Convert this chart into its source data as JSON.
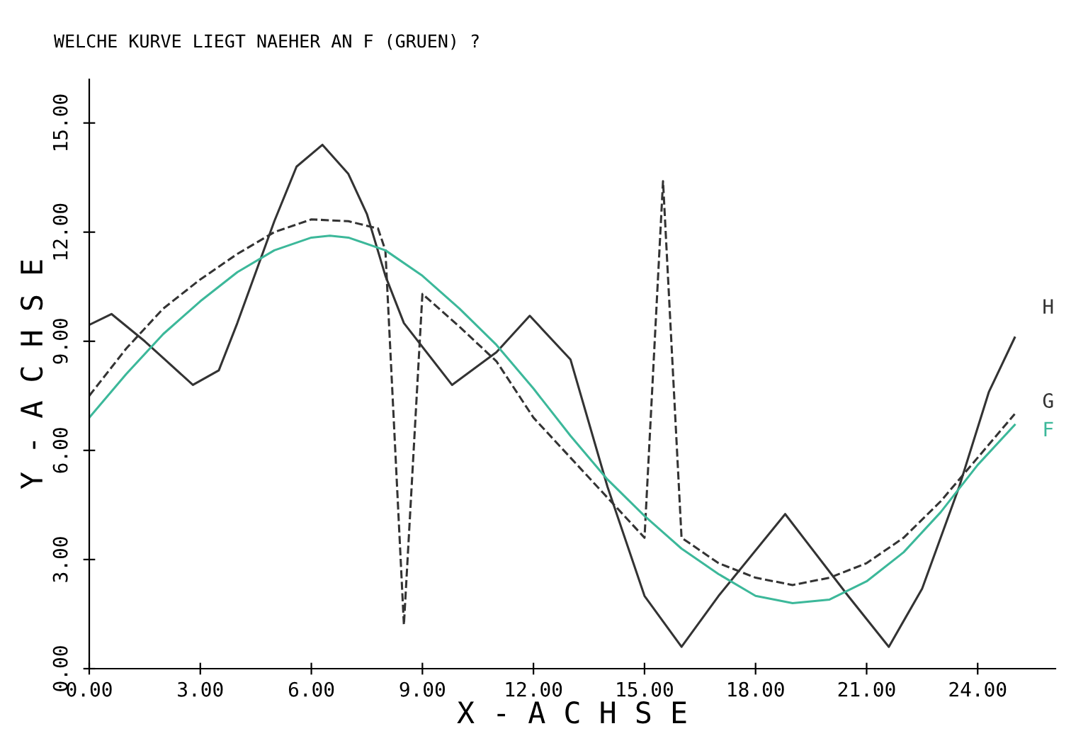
{
  "chart_data": {
    "type": "line",
    "title": "WELCHE KURVE LIEGT NAEHER AN F (GRUEN) ?",
    "xlabel": "X - A C H S E",
    "ylabel": "Y - A C H S E",
    "xlim": [
      0,
      26.1
    ],
    "ylim": [
      0,
      16.2
    ],
    "xticks": [
      {
        "value": 0,
        "label": "0.00"
      },
      {
        "value": 3,
        "label": "3.00"
      },
      {
        "value": 6,
        "label": "6.00"
      },
      {
        "value": 9,
        "label": "9.00"
      },
      {
        "value": 12,
        "label": "12.00"
      },
      {
        "value": 15,
        "label": "15.00"
      },
      {
        "value": 18,
        "label": "18.00"
      },
      {
        "value": 21,
        "label": "21.00"
      },
      {
        "value": 24,
        "label": "24.00"
      }
    ],
    "yticks": [
      {
        "value": 0,
        "label": "0.00"
      },
      {
        "value": 3,
        "label": "3.00"
      },
      {
        "value": 6,
        "label": "6.00"
      },
      {
        "value": 9,
        "label": "9.00"
      },
      {
        "value": 12,
        "label": "12.00"
      },
      {
        "value": 15,
        "label": "15.00"
      }
    ],
    "grid": false,
    "legend": false,
    "marker": "none",
    "series": [
      {
        "name": "H",
        "color": "#333333",
        "line_style": "solid",
        "x": [
          0,
          0.6,
          1.5,
          2.8,
          3.5,
          4,
          5,
          5.6,
          6.3,
          7,
          7.5,
          8,
          8.5,
          9.8,
          11,
          11.9,
          13,
          14,
          15,
          16,
          17,
          18.8,
          20.5,
          21.6,
          22.5,
          23.5,
          24.3,
          25
        ],
        "values": [
          9.45,
          9.75,
          9.0,
          7.8,
          8.2,
          9.5,
          12.3,
          13.8,
          14.4,
          13.6,
          12.5,
          10.8,
          9.5,
          7.8,
          8.7,
          9.7,
          8.5,
          5.0,
          2.0,
          0.6,
          2.0,
          4.25,
          2.0,
          0.6,
          2.2,
          5.0,
          7.6,
          9.1
        ]
      },
      {
        "name": "G",
        "color": "#333333",
        "line_style": "dashed",
        "x": [
          0,
          1,
          2,
          3,
          4,
          5,
          6,
          7,
          7.8,
          8.0,
          8.5,
          9.0,
          10,
          11,
          12,
          13,
          14,
          15,
          15.5,
          16.0,
          17,
          18,
          19,
          20,
          21,
          22,
          23,
          24,
          25
        ],
        "values": [
          7.5,
          8.8,
          9.9,
          10.7,
          11.4,
          12.0,
          12.35,
          12.3,
          12.1,
          11.5,
          1.2,
          10.3,
          9.4,
          8.45,
          6.9,
          5.8,
          4.7,
          3.6,
          13.4,
          3.6,
          2.9,
          2.5,
          2.3,
          2.5,
          2.9,
          3.6,
          4.6,
          5.8,
          7.0
        ]
      },
      {
        "name": "F",
        "color": "#3cb89a",
        "line_style": "solid",
        "x": [
          0,
          1,
          2,
          3,
          4,
          5,
          6,
          6.5,
          7,
          8,
          9,
          10,
          11,
          12,
          13,
          14,
          15,
          16,
          17,
          18,
          19,
          20,
          21,
          22,
          23,
          24,
          25
        ],
        "values": [
          6.9,
          8.1,
          9.2,
          10.1,
          10.9,
          11.5,
          11.85,
          11.9,
          11.85,
          11.5,
          10.8,
          9.9,
          8.9,
          7.7,
          6.4,
          5.2,
          4.2,
          3.3,
          2.6,
          2.0,
          1.8,
          1.9,
          2.4,
          3.2,
          4.3,
          5.6,
          6.7
        ]
      }
    ]
  }
}
